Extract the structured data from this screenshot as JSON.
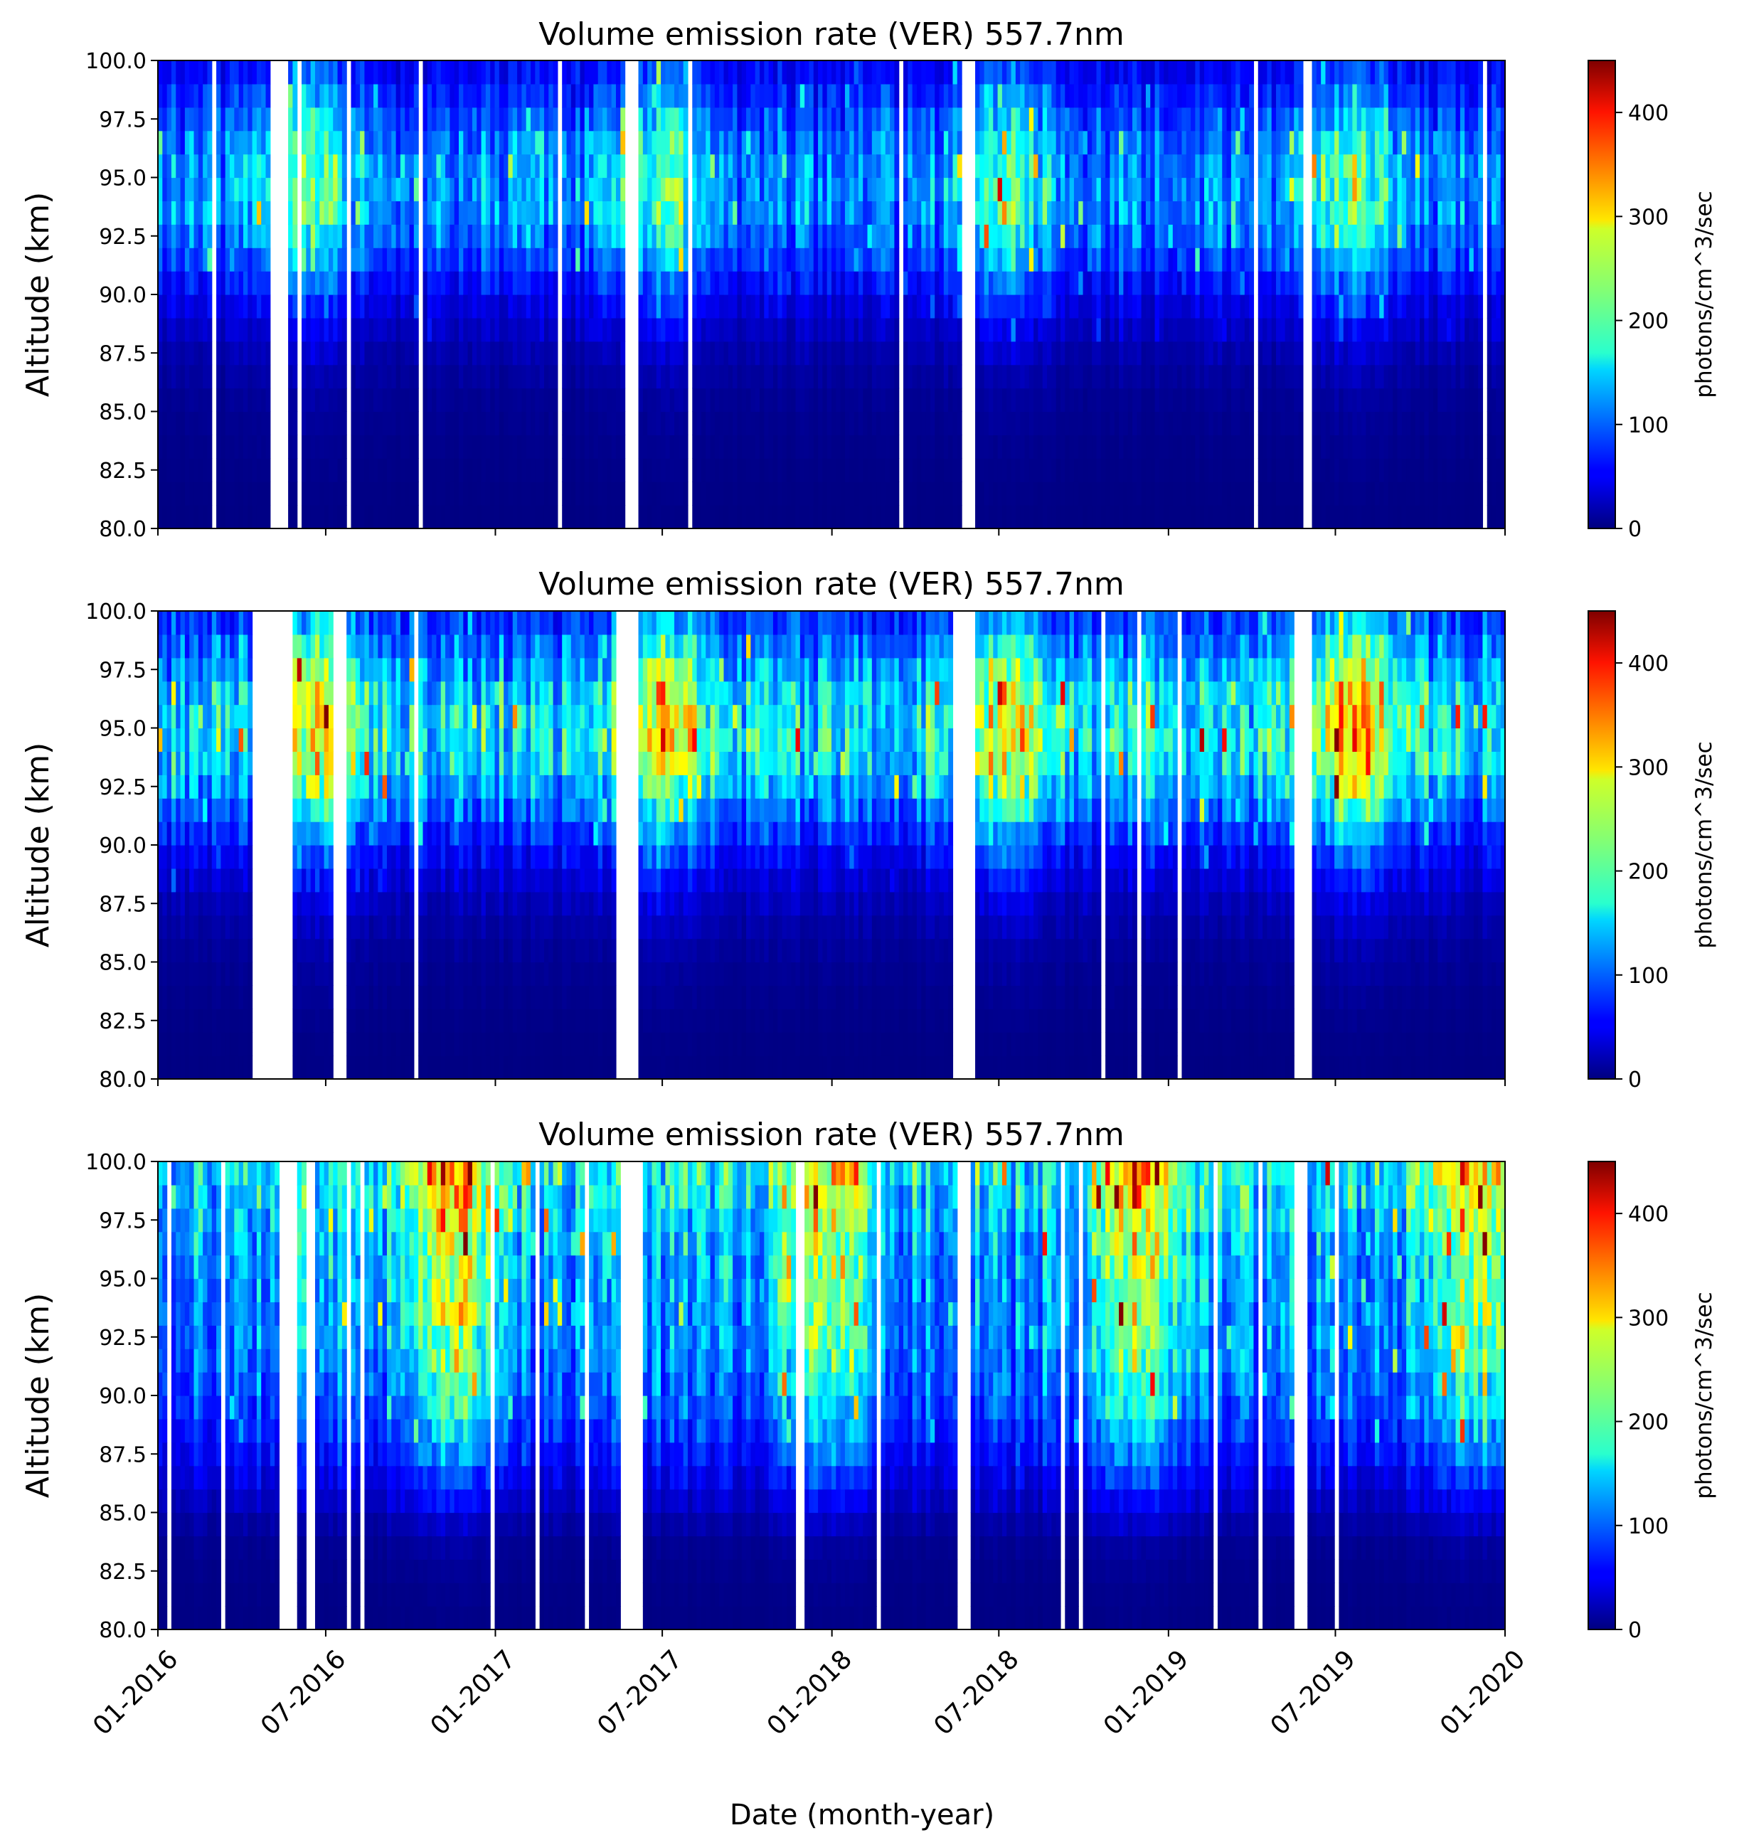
{
  "figure": {
    "xlabel": "Date (month-year)",
    "colormap": "jet",
    "colors": {
      "background": "#ffffff",
      "axis": "#000000",
      "missing": "#ffffff"
    }
  },
  "chart_data": [
    {
      "type": "heatmap",
      "title": "Volume emission rate (VER) 557.7nm",
      "ylabel": "Altitude (km)",
      "xlabel": "",
      "x_range": [
        "2016-01-01",
        "2020-01-01"
      ],
      "x_ticks": [
        "01-2016",
        "07-2016",
        "01-2017",
        "07-2017",
        "01-2018",
        "07-2018",
        "01-2019",
        "07-2019",
        "01-2020"
      ],
      "x_tick_labels_shown": false,
      "ylim": [
        80.0,
        100.0
      ],
      "y_ticks": [
        "80.0",
        "82.5",
        "85.0",
        "87.5",
        "90.0",
        "92.5",
        "95.0",
        "97.5",
        "100.0"
      ],
      "colorbar": {
        "label": "photons/cm^3/sec",
        "range": [
          0,
          450
        ],
        "ticks": [
          "0",
          "100",
          "200",
          "300",
          "400"
        ]
      },
      "altitude_profile": [
        {
          "altitude": 80,
          "ver": 2
        },
        {
          "altitude": 82,
          "ver": 4
        },
        {
          "altitude": 84,
          "ver": 8
        },
        {
          "altitude": 86,
          "ver": 15
        },
        {
          "altitude": 88,
          "ver": 35
        },
        {
          "altitude": 90,
          "ver": 75
        },
        {
          "altitude": 92,
          "ver": 140
        },
        {
          "altitude": 94,
          "ver": 185
        },
        {
          "altitude": 96,
          "ver": 175
        },
        {
          "altitude": 98,
          "ver": 120
        },
        {
          "altitude": 100,
          "ver": 70
        }
      ],
      "seasonal_peaks": [
        "2016-06-15",
        "2017-07-01",
        "2018-07-10",
        "2019-07-20"
      ],
      "data_gaps": [
        {
          "start": "2016-05-01",
          "end": "2016-05-22"
        },
        {
          "start": "2017-05-25",
          "end": "2017-06-06"
        },
        {
          "start": "2018-05-25",
          "end": "2018-06-06"
        },
        {
          "start": "2019-05-28",
          "end": "2019-06-05"
        }
      ]
    },
    {
      "type": "heatmap",
      "title": "Volume emission rate (VER) 557.7nm",
      "ylabel": "Altitude (km)",
      "xlabel": "",
      "x_range": [
        "2016-01-01",
        "2020-01-01"
      ],
      "x_ticks": [
        "01-2016",
        "07-2016",
        "01-2017",
        "07-2017",
        "01-2018",
        "07-2018",
        "01-2019",
        "07-2019",
        "01-2020"
      ],
      "x_tick_labels_shown": false,
      "ylim": [
        80.0,
        100.0
      ],
      "y_ticks": [
        "80.0",
        "82.5",
        "85.0",
        "87.5",
        "90.0",
        "92.5",
        "95.0",
        "97.5",
        "100.0"
      ],
      "colorbar": {
        "label": "photons/cm^3/sec",
        "range": [
          0,
          450
        ],
        "ticks": [
          "0",
          "100",
          "200",
          "300",
          "400"
        ]
      },
      "altitude_profile": [
        {
          "altitude": 80,
          "ver": 2
        },
        {
          "altitude": 82,
          "ver": 4
        },
        {
          "altitude": 84,
          "ver": 10
        },
        {
          "altitude": 86,
          "ver": 20
        },
        {
          "altitude": 88,
          "ver": 45
        },
        {
          "altitude": 90,
          "ver": 95
        },
        {
          "altitude": 92,
          "ver": 180
        },
        {
          "altitude": 94,
          "ver": 250
        },
        {
          "altitude": 96,
          "ver": 245
        },
        {
          "altitude": 98,
          "ver": 180
        },
        {
          "altitude": 100,
          "ver": 110
        }
      ],
      "seasonal_peaks": [
        "2016-06-20",
        "2017-07-01",
        "2018-07-10",
        "2019-07-25"
      ],
      "data_gaps": [
        {
          "start": "2016-04-10",
          "end": "2016-05-25"
        },
        {
          "start": "2016-07-10",
          "end": "2016-07-25"
        },
        {
          "start": "2017-05-10",
          "end": "2017-06-05"
        },
        {
          "start": "2018-05-10",
          "end": "2018-06-05"
        },
        {
          "start": "2019-05-15",
          "end": "2019-06-05"
        }
      ]
    },
    {
      "type": "heatmap",
      "title": "Volume emission rate (VER) 557.7nm",
      "ylabel": "Altitude (km)",
      "xlabel": "Date (month-year)",
      "x_range": [
        "2016-01-01",
        "2020-01-01"
      ],
      "x_ticks": [
        "01-2016",
        "07-2016",
        "01-2017",
        "07-2017",
        "01-2018",
        "07-2018",
        "01-2019",
        "07-2019",
        "01-2020"
      ],
      "x_tick_labels_shown": true,
      "ylim": [
        80.0,
        100.0
      ],
      "y_ticks": [
        "80.0",
        "82.5",
        "85.0",
        "87.5",
        "90.0",
        "92.5",
        "95.0",
        "97.5",
        "100.0"
      ],
      "colorbar": {
        "label": "photons/cm^3/sec",
        "range": [
          0,
          450
        ],
        "ticks": [
          "0",
          "100",
          "200",
          "300",
          "400"
        ]
      },
      "altitude_profile": [
        {
          "altitude": 80,
          "ver": 3
        },
        {
          "altitude": 82,
          "ver": 6
        },
        {
          "altitude": 84,
          "ver": 15
        },
        {
          "altitude": 86,
          "ver": 60
        },
        {
          "altitude": 88,
          "ver": 110
        },
        {
          "altitude": 90,
          "ver": 150
        },
        {
          "altitude": 92,
          "ver": 180
        },
        {
          "altitude": 94,
          "ver": 190
        },
        {
          "altitude": 96,
          "ver": 200
        },
        {
          "altitude": 98,
          "ver": 230
        },
        {
          "altitude": 100,
          "ver": 270
        }
      ],
      "seasonal_peaks": [
        "2016-11-15",
        "2017-12-20",
        "2018-11-25",
        "2019-11-20"
      ],
      "data_gaps": [
        {
          "start": "2016-05-10",
          "end": "2016-06-01"
        },
        {
          "start": "2016-06-12",
          "end": "2016-06-20"
        },
        {
          "start": "2017-05-20",
          "end": "2017-06-08"
        },
        {
          "start": "2018-05-15",
          "end": "2018-06-01"
        },
        {
          "start": "2019-05-15",
          "end": "2019-06-01"
        }
      ]
    }
  ]
}
